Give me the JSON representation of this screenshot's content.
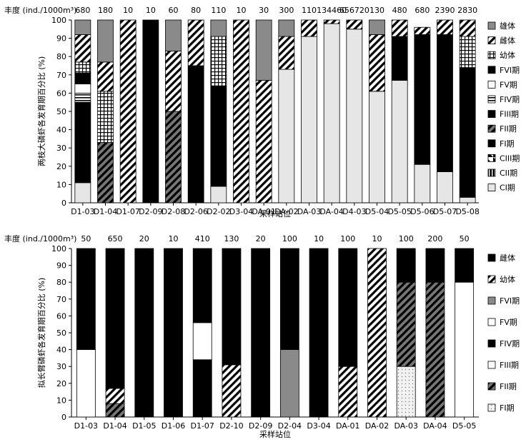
{
  "chart_data": [
    {
      "type": "bar",
      "stacked": true,
      "abundance_label": "丰度",
      "abundance_unit": "(ind./1000m³)",
      "abundance": [
        "680",
        "180",
        "10",
        "10",
        "60",
        "80",
        "110",
        "10",
        "30",
        "300",
        "110",
        "134460",
        "656720",
        "130",
        "480",
        "680",
        "2390",
        "2830"
      ],
      "categories": [
        "D1-03",
        "D1-04",
        "D1-07",
        "D2-09",
        "D2-08",
        "D2-06",
        "D2-02",
        "D3-04",
        "DA-01",
        "DA-02",
        "DA-03",
        "DA-04",
        "D4-03",
        "D5-04",
        "D5-05",
        "D5-06",
        "D5-07",
        "D5-08"
      ],
      "xlabel": "采样站位",
      "ylabel": "两枝大磷虾各发育期百分比 (%)",
      "ylim": [
        0,
        100
      ],
      "yticks": [
        0,
        10,
        20,
        30,
        40,
        50,
        60,
        70,
        80,
        90,
        100
      ],
      "legend_position": "right",
      "series": [
        {
          "name": "CI期",
          "pattern": "light",
          "values": [
            11,
            0,
            0,
            0,
            0,
            0,
            9,
            0,
            0,
            73,
            91,
            98,
            95,
            61,
            67,
            21,
            17,
            3
          ]
        },
        {
          "name": "CII期",
          "pattern": "vline",
          "values": [
            0,
            0,
            0,
            0,
            0,
            0,
            0,
            0,
            0,
            0,
            0,
            0,
            0,
            0,
            0,
            0,
            0,
            0
          ]
        },
        {
          "name": "CIII期",
          "pattern": "halfdiag",
          "values": [
            0,
            0,
            0,
            0,
            0,
            0,
            0,
            0,
            0,
            0,
            0,
            0,
            0,
            0,
            0,
            0,
            0,
            0
          ]
        },
        {
          "name": "FI期",
          "pattern": "black",
          "values": [
            42,
            0,
            0,
            100,
            0,
            75,
            55,
            0,
            0,
            0,
            0,
            0,
            0,
            0,
            24,
            0,
            0,
            71
          ]
        },
        {
          "name": "FII期",
          "pattern": "darkdiag",
          "values": [
            0,
            33,
            0,
            0,
            50,
            0,
            0,
            0,
            0,
            0,
            0,
            0,
            0,
            0,
            0,
            0,
            0,
            0
          ]
        },
        {
          "name": "FIII期",
          "pattern": "black",
          "values": [
            2,
            0,
            0,
            0,
            0,
            0,
            0,
            0,
            0,
            0,
            0,
            0,
            0,
            0,
            0,
            0,
            0,
            0
          ]
        },
        {
          "name": "FIV期",
          "pattern": "hline",
          "values": [
            5,
            0,
            0,
            0,
            0,
            0,
            0,
            0,
            0,
            0,
            0,
            0,
            0,
            0,
            0,
            0,
            0,
            0
          ]
        },
        {
          "name": "FV期",
          "pattern": "white",
          "values": [
            5,
            0,
            0,
            0,
            0,
            0,
            0,
            0,
            0,
            0,
            0,
            0,
            0,
            0,
            0,
            0,
            0,
            0
          ]
        },
        {
          "name": "FVI期",
          "pattern": "black",
          "values": [
            6,
            0,
            0,
            0,
            0,
            0,
            0,
            0,
            0,
            0,
            0,
            0,
            0,
            0,
            0,
            71,
            75,
            0
          ]
        },
        {
          "name": "幼体",
          "pattern": "grid",
          "values": [
            6,
            28,
            0,
            0,
            0,
            0,
            27,
            0,
            0,
            0,
            0,
            0,
            0,
            0,
            0,
            0,
            0,
            17
          ]
        },
        {
          "name": "雌体",
          "pattern": "diag",
          "values": [
            15,
            16,
            100,
            0,
            33,
            25,
            0,
            100,
            67,
            18,
            9,
            2,
            5,
            31,
            9,
            4,
            8,
            9
          ]
        },
        {
          "name": "雄体",
          "pattern": "gray",
          "values": [
            8,
            23,
            0,
            0,
            17,
            0,
            9,
            0,
            33,
            9,
            0,
            0,
            0,
            8,
            0,
            0,
            0,
            0
          ]
        }
      ]
    },
    {
      "type": "bar",
      "stacked": true,
      "abundance_label": "丰度",
      "abundance_unit": "(ind./1000m³)",
      "abundance": [
        "50",
        "650",
        "20",
        "10",
        "410",
        "130",
        "20",
        "100",
        "10",
        "100",
        "10",
        "100",
        "200",
        "50"
      ],
      "categories": [
        "D1-03",
        "D1-04",
        "D1-05",
        "D1-06",
        "D1-07",
        "D2-10",
        "D2-09",
        "D2-04",
        "D3-04",
        "DA-01",
        "DA-02",
        "DA-03",
        "DA-04",
        "D5-05"
      ],
      "xlabel": "采样站位",
      "ylabel": "拟长臂磷虾各发育期百分比 (%)",
      "ylim": [
        0,
        100
      ],
      "yticks": [
        0,
        10,
        20,
        30,
        40,
        50,
        60,
        70,
        80,
        90,
        100
      ],
      "legend_position": "right",
      "series": [
        {
          "name": "FI期",
          "pattern": "dots",
          "values": [
            0,
            0,
            0,
            0,
            0,
            0,
            0,
            0,
            0,
            0,
            0,
            30,
            0,
            0
          ]
        },
        {
          "name": "FII期",
          "pattern": "darkdiag",
          "values": [
            0,
            8,
            0,
            0,
            0,
            0,
            0,
            0,
            0,
            0,
            0,
            50,
            80,
            0
          ]
        },
        {
          "name": "FIII期",
          "pattern": "white",
          "values": [
            40,
            0,
            0,
            0,
            0,
            0,
            0,
            0,
            0,
            0,
            0,
            0,
            0,
            80
          ]
        },
        {
          "name": "FIV期",
          "pattern": "black",
          "values": [
            0,
            0,
            0,
            0,
            34,
            0,
            0,
            0,
            0,
            0,
            0,
            0,
            0,
            0
          ]
        },
        {
          "name": "FV期",
          "pattern": "white",
          "values": [
            0,
            0,
            0,
            0,
            22,
            0,
            0,
            0,
            0,
            0,
            0,
            0,
            0,
            0
          ]
        },
        {
          "name": "FVI期",
          "pattern": "gray",
          "values": [
            0,
            0,
            0,
            0,
            0,
            0,
            0,
            40,
            0,
            0,
            0,
            0,
            0,
            0
          ]
        },
        {
          "name": "幼体",
          "pattern": "diag",
          "values": [
            0,
            9,
            0,
            0,
            0,
            31,
            0,
            0,
            0,
            30,
            100,
            0,
            0,
            0
          ]
        },
        {
          "name": "雌体",
          "pattern": "black",
          "values": [
            60,
            83,
            100,
            100,
            44,
            69,
            100,
            60,
            100,
            70,
            0,
            20,
            20,
            20
          ]
        }
      ]
    }
  ]
}
